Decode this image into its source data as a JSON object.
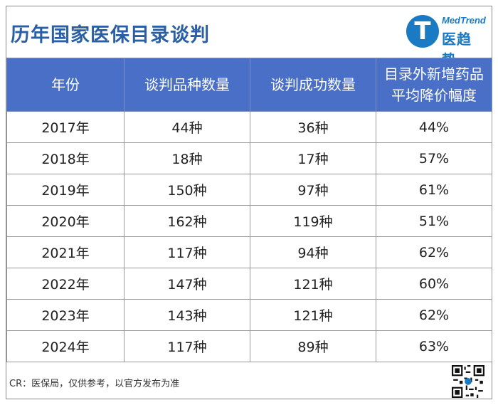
{
  "title": "历年国家医保目录谈判",
  "logo": {
    "icon": "medtrend-t-logo-icon",
    "text_en": "MedTrend",
    "text_cn": "医趋势",
    "color": "#1a7ac4"
  },
  "table": {
    "headers": [
      {
        "line1": "年份",
        "line2": ""
      },
      {
        "line1": "谈判品种数量",
        "line2": ""
      },
      {
        "line1": "谈判成功数量",
        "line2": ""
      },
      {
        "line1": "目录外新增药品",
        "line2": "平均降价幅度"
      }
    ],
    "rows": [
      [
        "2017年",
        "44种",
        "36种",
        "44%"
      ],
      [
        "2018年",
        "18种",
        "17种",
        "57%"
      ],
      [
        "2019年",
        "150种",
        "97种",
        "61%"
      ],
      [
        "2020年",
        "162种",
        "119种",
        "51%"
      ],
      [
        "2021年",
        "117种",
        "94种",
        "62%"
      ],
      [
        "2022年",
        "147种",
        "121种",
        "60%"
      ],
      [
        "2023年",
        "143种",
        "121种",
        "62%"
      ],
      [
        "2024年",
        "117种",
        "89种",
        "63%"
      ]
    ],
    "header_bg": "#4a6fc6"
  },
  "footer": {
    "credit": "CR：医保局，仅供参考，以官方发布为准",
    "qr_icon": "qr-code-icon"
  },
  "colors": {
    "title": "#2a5fa6",
    "header_bg": "#4a6fc6",
    "brand": "#1a7ac4"
  }
}
